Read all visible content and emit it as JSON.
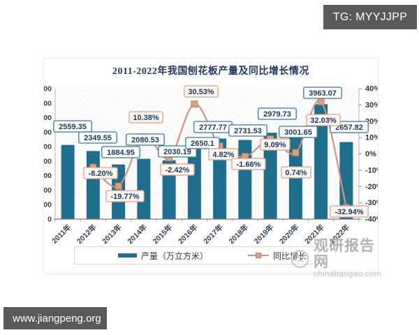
{
  "badge": {
    "label": "TG: MYYJJPP"
  },
  "footer": {
    "label": "www.jiangpeng.org"
  },
  "watermark": {
    "site_name": "观研报告网",
    "site_domain": "chinabaogao.com"
  },
  "chart_data": {
    "type": "bar",
    "combo": "bar+line",
    "title": "2011-2022年我国刨花板产量及同比增长情况",
    "categories": [
      "2011年",
      "2012年",
      "2013年",
      "2014年",
      "2015年",
      "2016年",
      "2017年",
      "2018年",
      "2019年",
      "2020年",
      "2021年",
      "2022年"
    ],
    "series": [
      {
        "name": "产量（万立方米）",
        "type": "bar",
        "axis": "left",
        "color": "#1E6F8E",
        "values": [
          2559.35,
          2349.55,
          1884.95,
          2080.53,
          2030.19,
          2650.1,
          2777.77,
          2731.53,
          2979.73,
          3001.65,
          3963.07,
          2657.82
        ],
        "labels": [
          "2559.35",
          "2349.55",
          "1884.95",
          "2080.53",
          "2030.19",
          "2650.1",
          "2777.77",
          "2731.53",
          "2979.73",
          "3001.65",
          "3963.07",
          "2657.82"
        ]
      },
      {
        "name": "同比增长",
        "type": "line",
        "axis": "right",
        "color": "#D8917E",
        "marker_color": "#D9A27C",
        "values": [
          null,
          -8.2,
          -19.77,
          10.38,
          -2.42,
          30.53,
          4.82,
          -1.66,
          9.09,
          0.74,
          32.03,
          -32.94
        ],
        "labels": [
          "",
          "-8.20%",
          "-19.77%",
          "10.38%",
          "-2.42%",
          "30.53%",
          "4.82%",
          "-1.66%",
          "9.09%",
          "0.74%",
          "32.03%",
          "-32.94%"
        ]
      }
    ],
    "left_axis": {
      "min": 0,
      "max": 4500,
      "step": 500
    },
    "right_axis": {
      "min": -40,
      "max": 40,
      "step": 10,
      "suffix": "%"
    },
    "legend_position": "bottom",
    "plot_background": "diagonal-hatch",
    "grid": false
  },
  "styles": {
    "bar_color": "#1E6F8E",
    "line_color": "#D8917E",
    "marker_color": "#D9A27C",
    "value_box_border": "#2E7D9A",
    "pct_box_border": "#D9A08C",
    "pct_box_bg": "#FDF7F1",
    "label_text_color": "#1F3864",
    "title_color": "#1F3864",
    "badge_bg": "#58595B"
  }
}
